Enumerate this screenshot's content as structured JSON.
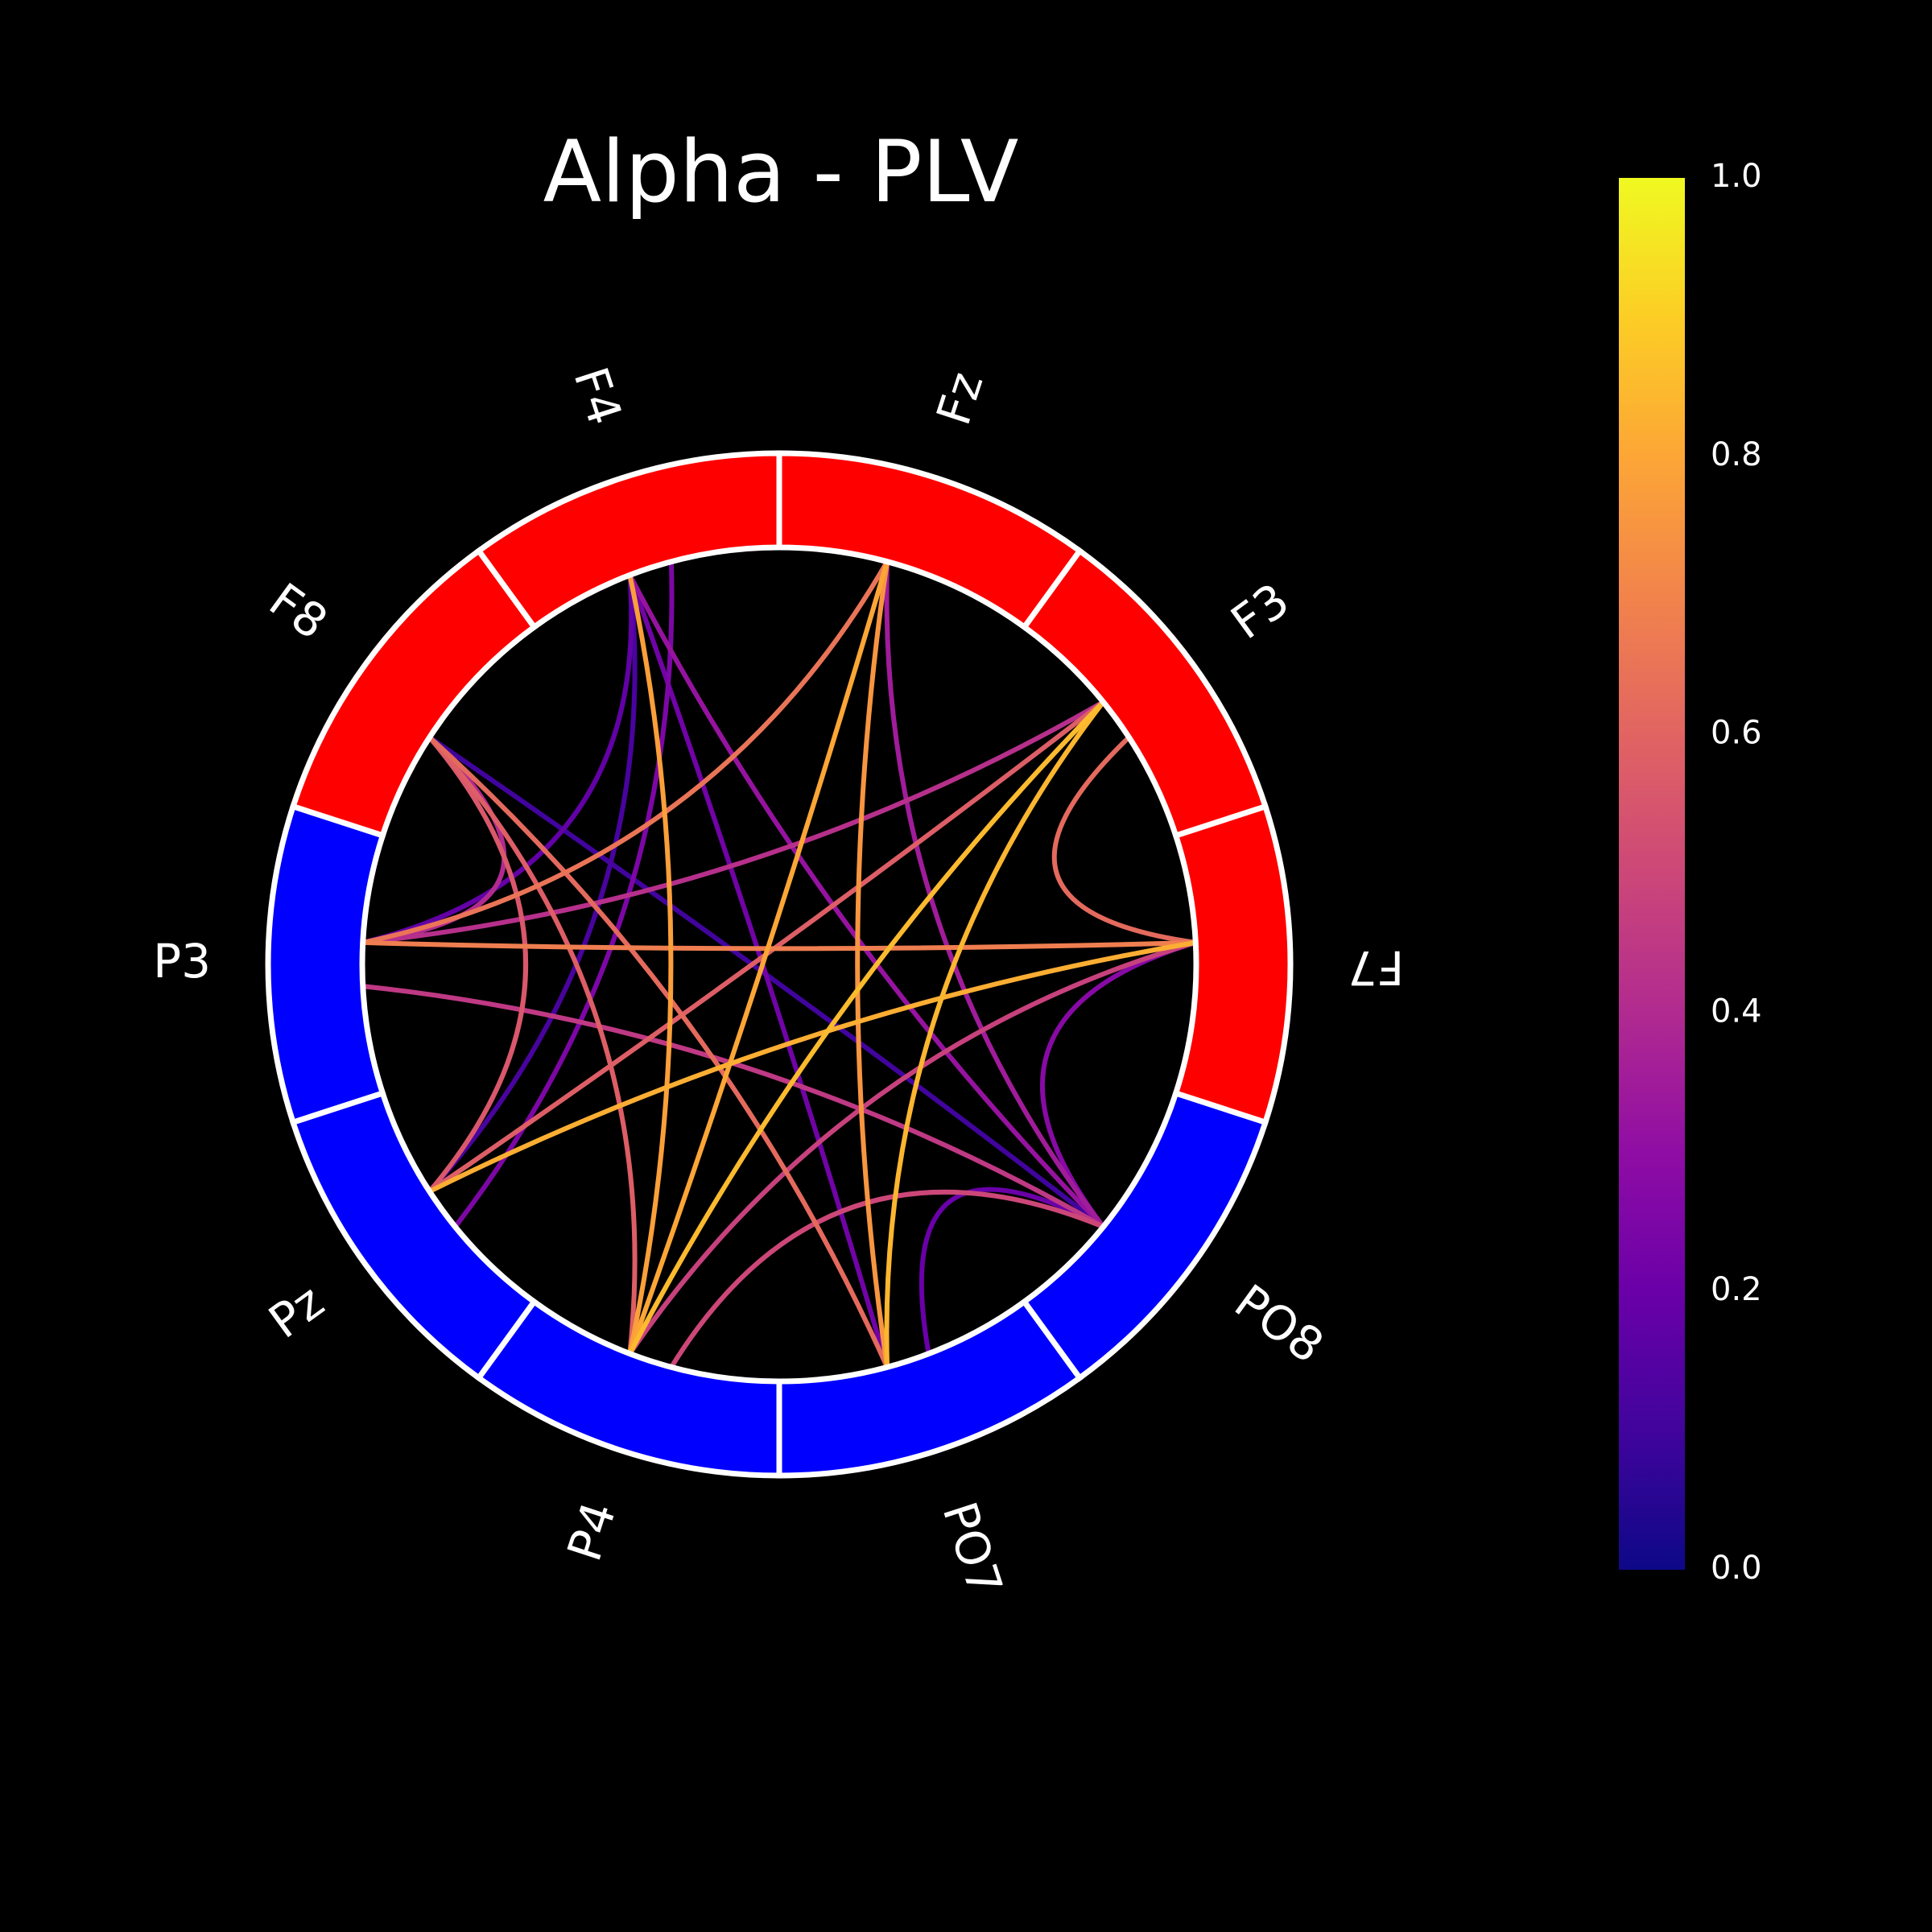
{
  "chart_data": {
    "type": "connectivity-circle",
    "title": "Alpha - PLV",
    "nodes": [
      {
        "name": "F7",
        "angle_deg": 0,
        "group": "frontal"
      },
      {
        "name": "F3",
        "angle_deg": 36,
        "group": "frontal"
      },
      {
        "name": "Fz",
        "angle_deg": 72,
        "group": "frontal"
      },
      {
        "name": "F4",
        "angle_deg": 108,
        "group": "frontal"
      },
      {
        "name": "F8",
        "angle_deg": 144,
        "group": "frontal"
      },
      {
        "name": "P3",
        "angle_deg": 180,
        "group": "parietal"
      },
      {
        "name": "Pz",
        "angle_deg": 216,
        "group": "parietal"
      },
      {
        "name": "P4",
        "angle_deg": 252,
        "group": "parietal"
      },
      {
        "name": "PO7",
        "angle_deg": 288,
        "group": "parietal"
      },
      {
        "name": "PO8",
        "angle_deg": 324,
        "group": "parietal"
      }
    ],
    "group_colors": {
      "frontal": "#ff0000",
      "parietal": "#0000ff"
    },
    "connections": [
      {
        "a": "F7",
        "b": "P3",
        "value": 0.68
      },
      {
        "a": "F7",
        "b": "Pz",
        "value": 0.82
      },
      {
        "a": "F7",
        "b": "PO8",
        "value": 0.28
      },
      {
        "a": "F7",
        "b": "P4",
        "value": 0.48
      },
      {
        "a": "F7",
        "b": "F3",
        "value": 0.62
      },
      {
        "a": "F3",
        "b": "P3",
        "value": 0.42
      },
      {
        "a": "F3",
        "b": "P4",
        "value": 0.85
      },
      {
        "a": "F3",
        "b": "PO7",
        "value": 0.84
      },
      {
        "a": "F3",
        "b": "Pz",
        "value": 0.58
      },
      {
        "a": "Fz",
        "b": "P3",
        "value": 0.65
      },
      {
        "a": "Fz",
        "b": "P4",
        "value": 0.8
      },
      {
        "a": "Fz",
        "b": "PO7",
        "value": 0.75
      },
      {
        "a": "Fz",
        "b": "PO8",
        "value": 0.35
      },
      {
        "a": "F4",
        "b": "P4",
        "value": 0.78
      },
      {
        "a": "F4",
        "b": "PO8",
        "value": 0.32
      },
      {
        "a": "F4",
        "b": "PO7",
        "value": 0.22
      },
      {
        "a": "F4",
        "b": "P3",
        "value": 0.18
      },
      {
        "a": "F4",
        "b": "Pz",
        "value": 0.12
      },
      {
        "a": "F8",
        "b": "PO8",
        "value": 0.1
      },
      {
        "a": "F8",
        "b": "PO7",
        "value": 0.62
      },
      {
        "a": "F8",
        "b": "P4",
        "value": 0.58
      },
      {
        "a": "F8",
        "b": "Pz",
        "value": 0.56
      },
      {
        "a": "F8",
        "b": "P3",
        "value": 0.4
      },
      {
        "a": "P3",
        "b": "PO8",
        "value": 0.45
      },
      {
        "a": "Pz",
        "b": "F4",
        "value": 0.25
      },
      {
        "a": "PO7",
        "b": "PO8",
        "value": 0.2
      },
      {
        "a": "P4",
        "b": "PO8",
        "value": 0.5
      }
    ],
    "colormap": "plasma",
    "colorbar": {
      "min": 0.0,
      "max": 1.0,
      "ticks": [
        "0.0",
        "0.2",
        "0.4",
        "0.6",
        "0.8",
        "1.0"
      ]
    },
    "legend": "none"
  }
}
